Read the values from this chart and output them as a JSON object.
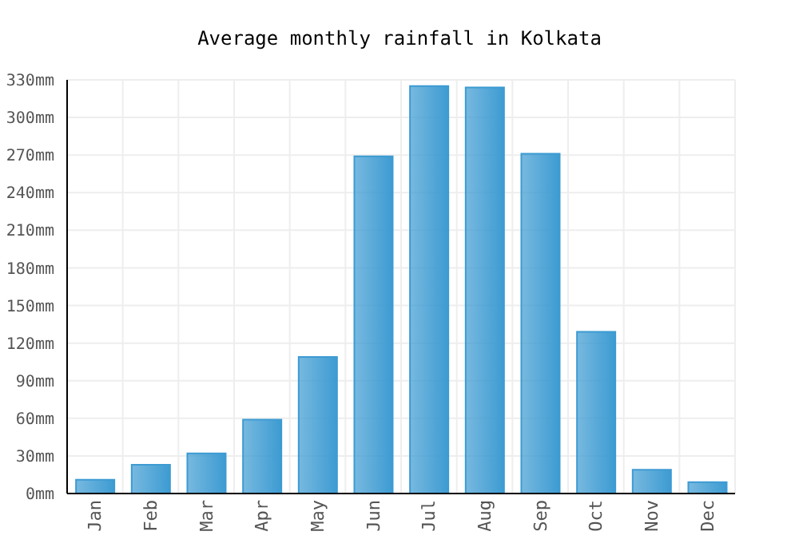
{
  "chart_data": {
    "type": "bar",
    "title": "Average monthly rainfall in Kolkata",
    "categories": [
      "Jan",
      "Feb",
      "Mar",
      "Apr",
      "May",
      "Jun",
      "Jul",
      "Aug",
      "Sep",
      "Oct",
      "Nov",
      "Dec"
    ],
    "values": [
      11,
      23,
      32,
      59,
      109,
      269,
      325,
      324,
      271,
      129,
      19,
      9
    ],
    "color": "#3d9bd2",
    "ylim": [
      0,
      330
    ],
    "yticks": [
      {
        "value": 0,
        "label": "0mm"
      },
      {
        "value": 30,
        "label": "30mm"
      },
      {
        "value": 60,
        "label": "60mm"
      },
      {
        "value": 90,
        "label": "90mm"
      },
      {
        "value": 120,
        "label": "120mm"
      },
      {
        "value": 150,
        "label": "150mm"
      },
      {
        "value": 180,
        "label": "180mm"
      },
      {
        "value": 210,
        "label": "210mm"
      },
      {
        "value": 240,
        "label": "240mm"
      },
      {
        "value": 270,
        "label": "270mm"
      },
      {
        "value": 300,
        "label": "300mm"
      },
      {
        "value": 330,
        "label": "330mm"
      }
    ],
    "grid": true
  }
}
